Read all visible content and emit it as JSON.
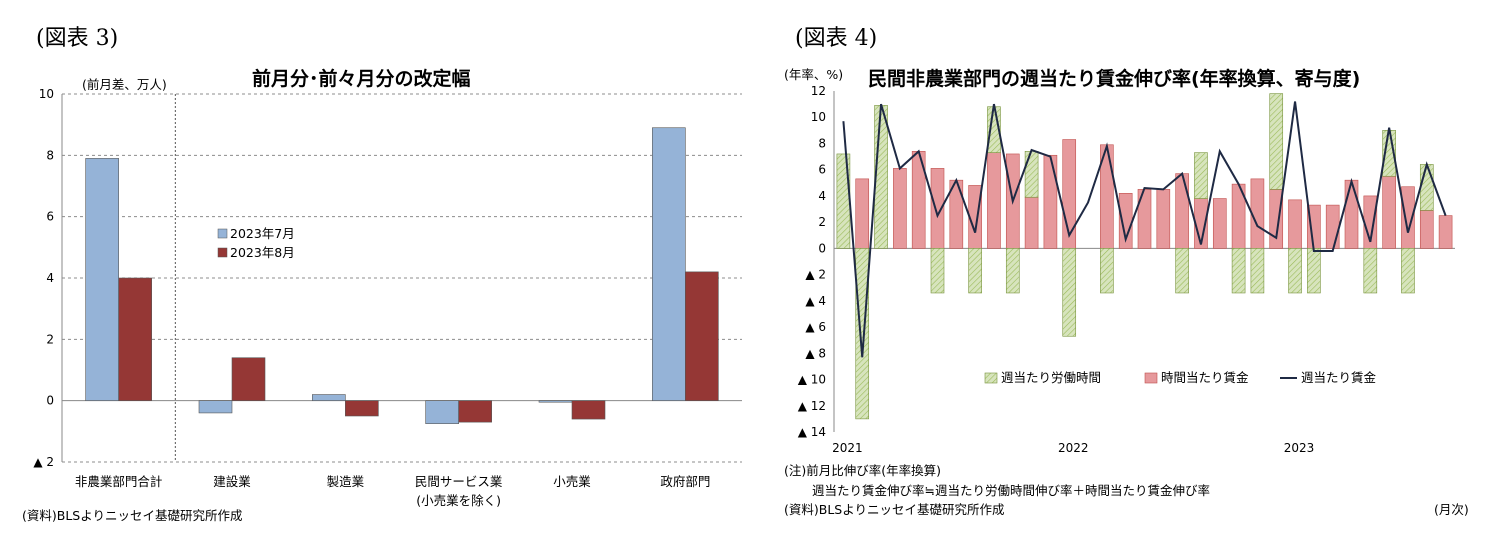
{
  "left": {
    "fig_label": "(図表 3)",
    "unit": "(前月差、万人)",
    "source": "(資料)BLSよりニッセイ基礎研究所作成",
    "chart_data": {
      "type": "bar",
      "title": "前月分･前々月分の改定幅",
      "categories": [
        "非農業部門合計",
        "建設業",
        "製造業",
        "民間サービス業",
        "小売業",
        "政府部門"
      ],
      "category_sublabels": [
        "",
        "",
        "",
        "(小売業を除く)",
        "",
        ""
      ],
      "series": [
        {
          "name": "2023年7月",
          "color": "#95b3d7",
          "values": [
            7.9,
            -0.4,
            0.2,
            -0.75,
            -0.05,
            8.9
          ]
        },
        {
          "name": "2023年8月",
          "color": "#953735",
          "values": [
            4.0,
            1.4,
            -0.5,
            -0.7,
            -0.6,
            4.2
          ]
        }
      ],
      "ylim": [
        -2,
        10
      ],
      "yticks": [
        -2,
        0,
        2,
        4,
        6,
        8,
        10
      ],
      "ytick_labels": [
        "▲ 2",
        "0",
        "2",
        "4",
        "6",
        "8",
        "10"
      ],
      "grid": true,
      "legend": "center-left"
    }
  },
  "right": {
    "fig_label": "(図表 4)",
    "unit": "(年率、%)",
    "note1": "(注)前月比伸び率(年率換算)",
    "note2": "週当たり賃金伸び率≒週当たり労働時間伸び率＋時間当たり賃金伸び率",
    "source": "(資料)BLSよりニッセイ基礎研究所作成",
    "xunit": "(月次)",
    "chart_data": {
      "type": "bar",
      "title": "民間非農業部門の週当たり賃金伸び率(年率換算、寄与度)",
      "x": [
        "2021-01",
        "2021-02",
        "2021-03",
        "2021-04",
        "2021-05",
        "2021-06",
        "2021-07",
        "2021-08",
        "2021-09",
        "2021-10",
        "2021-11",
        "2021-12",
        "2022-01",
        "2022-02",
        "2022-03",
        "2022-04",
        "2022-05",
        "2022-06",
        "2022-07",
        "2022-08",
        "2022-09",
        "2022-10",
        "2022-11",
        "2022-12",
        "2023-01",
        "2023-02",
        "2023-03",
        "2023-04",
        "2023-05",
        "2023-06",
        "2023-07",
        "2023-08",
        "2023-09"
      ],
      "xtick_labels": [
        "2021",
        "2022",
        "2023"
      ],
      "series": [
        {
          "name": "週当たり労働時間",
          "type": "bar",
          "color": "#d7e4bd",
          "values": [
            7.2,
            -13,
            10.9,
            0,
            0,
            -3.4,
            0,
            -3.4,
            3.5,
            -3.4,
            3.5,
            0,
            -6.7,
            0,
            -3.4,
            0,
            0,
            0,
            -3.4,
            3.5,
            0,
            -3.4,
            -3.4,
            7.3,
            -3.4,
            -3.4,
            0,
            0,
            -3.4,
            3.5,
            -3.4,
            3.5,
            0
          ]
        },
        {
          "name": "時間当たり賃金",
          "type": "bar",
          "color": "#e6999c",
          "values": [
            0,
            5.3,
            0,
            6.1,
            7.4,
            6.1,
            5.2,
            4.8,
            7.3,
            7.2,
            3.9,
            7.1,
            8.3,
            0,
            7.9,
            4.2,
            4.5,
            4.5,
            5.7,
            3.8,
            3.8,
            4.9,
            5.3,
            4.5,
            3.7,
            3.3,
            3.3,
            5.2,
            4.0,
            5.5,
            4.7,
            2.9,
            2.5
          ]
        },
        {
          "name": "週当たり賃金",
          "type": "line",
          "color": "#1f2a44",
          "values": [
            9.7,
            -8.3,
            11.0,
            6.1,
            7.4,
            2.5,
            5.2,
            1.2,
            11.0,
            3.6,
            7.5,
            7.0,
            1.0,
            3.5,
            7.8,
            0.7,
            4.6,
            4.5,
            5.7,
            0.3,
            7.4,
            4.9,
            1.7,
            0.8,
            11.2,
            -0.2,
            -0.2,
            5.1,
            0.5,
            9.2,
            1.2,
            6.4,
            2.5
          ]
        }
      ],
      "ylim": [
        -14,
        12
      ],
      "yticks": [
        12,
        10,
        8,
        6,
        4,
        2,
        0,
        -2,
        -4,
        -6,
        -8,
        -10,
        -12,
        -14
      ],
      "ytick_labels": [
        "12",
        "10",
        "8",
        "6",
        "4",
        "2",
        "0",
        "▲ 2",
        "▲ 4",
        "▲ 6",
        "▲ 8",
        "▲ 10",
        "▲ 12",
        "▲ 14"
      ],
      "grid": false,
      "legend": "bottom"
    }
  }
}
